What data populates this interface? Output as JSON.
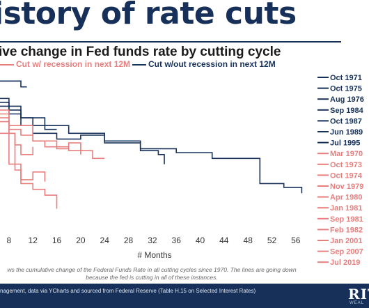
{
  "title": "istory of rate cuts",
  "subtitle": "ive change in Fed funds rate by cutting cycle",
  "note": "ws the cumulative change of the Federal Funds Rate in all cutting cycles since 1970. The lines are going down because the fed is cutting in all of these instances.",
  "source": "nagement, data via YCharts and sourced from Federal Reserve (Table H.15 on Selected Interest Rates)",
  "logo": "RIT",
  "logo_sub": "WEAL",
  "colors": {
    "recession": "#e87e7e",
    "no_recession": "#16305a",
    "title": "#16305a"
  },
  "chart_data": {
    "type": "line",
    "xlabel": "# Months",
    "x_ticks": [
      8,
      12,
      16,
      20,
      24,
      28,
      32,
      36,
      40,
      44,
      48,
      52,
      56
    ],
    "xlim": [
      6.5,
      58
    ],
    "grid": false,
    "legend": [
      {
        "label": "Cut w/ recession in next 12M",
        "color": "#e87e7e"
      },
      {
        "label": "Cut w/out recession in next 12M",
        "color": "#16305a"
      }
    ],
    "end_labels": [
      {
        "label": "Oct 1971",
        "color": "#16305a"
      },
      {
        "label": "Oct 1975",
        "color": "#16305a"
      },
      {
        "label": "Aug 1976",
        "color": "#16305a"
      },
      {
        "label": "Sep 1984",
        "color": "#16305a"
      },
      {
        "label": "Oct 1987",
        "color": "#16305a"
      },
      {
        "label": "Jun 1989",
        "color": "#16305a"
      },
      {
        "label": "Jul 1995",
        "color": "#16305a"
      },
      {
        "label": "Mar 1970",
        "color": "#e87e7e"
      },
      {
        "label": "Oct 1973",
        "color": "#e87e7e"
      },
      {
        "label": "Oct 1974",
        "color": "#e87e7e"
      },
      {
        "label": "Nov 1979",
        "color": "#e87e7e"
      },
      {
        "label": "Apr 1980",
        "color": "#e87e7e"
      },
      {
        "label": "Jan 1981",
        "color": "#e87e7e"
      },
      {
        "label": "Sep 1981",
        "color": "#e87e7e"
      },
      {
        "label": "Feb 1982",
        "color": "#e87e7e"
      },
      {
        "label": "Jan 2001",
        "color": "#e87e7e"
      },
      {
        "label": "Sep 2007",
        "color": "#e87e7e"
      },
      {
        "label": "Jul 2019",
        "color": "#e87e7e"
      }
    ],
    "ylim": [
      -8,
      0
    ],
    "series": [
      {
        "group": "no_recession",
        "x": [
          6.5,
          10,
          10,
          11
        ],
        "y": [
          -0.3,
          -0.3,
          -0.6,
          -0.6
        ]
      },
      {
        "group": "no_recession",
        "x": [
          6.5,
          8,
          8,
          10,
          10,
          12,
          12,
          14,
          14,
          16
        ],
        "y": [
          -1.2,
          -1.2,
          -1.8,
          -1.8,
          -2.2,
          -2.2,
          -2.6,
          -2.6,
          -2.8,
          -2.8
        ]
      },
      {
        "group": "no_recession",
        "x": [
          6.5,
          8,
          8,
          10,
          10,
          12,
          12,
          16,
          16,
          20,
          20,
          24,
          24,
          30,
          30,
          33,
          33,
          34,
          34
        ],
        "y": [
          -1.4,
          -1.4,
          -2.0,
          -2.0,
          -2.6,
          -2.6,
          -3.0,
          -3.0,
          -3.3,
          -3.3,
          -3.1,
          -3.1,
          -3.5,
          -3.5,
          -3.9,
          -3.9,
          -4.1,
          -4.1,
          -4.6
        ]
      },
      {
        "group": "no_recession",
        "x": [
          6.5,
          10,
          10,
          14,
          14,
          18,
          18,
          24,
          24,
          30,
          30,
          36,
          36,
          42,
          42,
          50,
          50,
          54,
          54,
          57,
          57
        ],
        "y": [
          -1.6,
          -1.6,
          -2.2,
          -2.2,
          -2.6,
          -2.6,
          -3.0,
          -3.0,
          -3.4,
          -3.4,
          -3.8,
          -3.8,
          -4.0,
          -4.0,
          -4.3,
          -4.3,
          -5.6,
          -5.6,
          -5.8,
          -5.8,
          -6.1
        ]
      },
      {
        "group": "recession",
        "x": [
          6.5,
          8,
          8,
          12,
          12,
          14,
          14,
          18,
          18,
          20,
          20
        ],
        "y": [
          -1.8,
          -1.8,
          -2.6,
          -2.6,
          -3.4,
          -3.4,
          -3.7,
          -3.7,
          -3.9,
          -3.9,
          -4.1
        ]
      },
      {
        "group": "recession",
        "x": [
          6.5,
          8,
          8,
          10,
          10,
          12,
          12,
          16,
          16,
          18,
          18,
          20,
          20,
          22,
          22,
          24
        ],
        "y": [
          -2.2,
          -2.2,
          -2.8,
          -2.8,
          -3.1,
          -3.1,
          -3.4,
          -3.4,
          -3.8,
          -3.8,
          -3.5,
          -3.5,
          -3.9,
          -3.9,
          -4.3,
          -4.3
        ]
      },
      {
        "group": "recession",
        "x": [
          6.5,
          8,
          8,
          9,
          9,
          10,
          10,
          12,
          12
        ],
        "y": [
          -2.0,
          -2.0,
          -3.0,
          -3.0,
          -3.6,
          -3.6,
          -4.1,
          -4.1,
          -3.7
        ]
      },
      {
        "group": "recession",
        "x": [
          6.5,
          9,
          9,
          10,
          10,
          12,
          12,
          14,
          14,
          16,
          16
        ],
        "y": [
          -3.0,
          -3.0,
          -4.9,
          -4.9,
          -5.6,
          -5.6,
          -5.9,
          -5.9,
          -6.2,
          -6.2,
          -6.9
        ]
      },
      {
        "group": "recession",
        "x": [
          6.5,
          8,
          8,
          10,
          10,
          12,
          12,
          14,
          14
        ],
        "y": [
          -2.4,
          -2.4,
          -4.6,
          -4.6,
          -5.4,
          -5.4,
          -5.0,
          -5.0,
          -5.5
        ]
      }
    ]
  }
}
